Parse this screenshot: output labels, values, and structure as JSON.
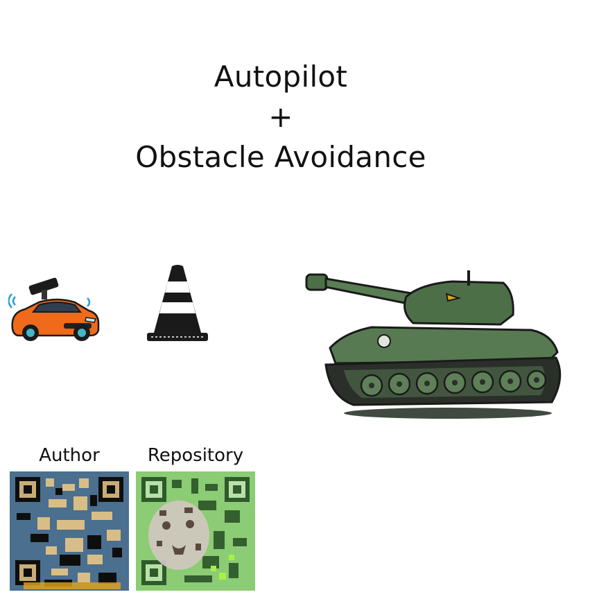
{
  "title": {
    "line1": "Autopilot",
    "line2": "+",
    "line3": "Obstacle Avoidance"
  },
  "illustrations": {
    "car_icon": "robot-car-with-lidar-icon",
    "cone_icon": "traffic-cone-icon",
    "tank_icon": "tank-icon"
  },
  "qr_codes": [
    {
      "label": "Author",
      "accent": "#4a6f8f"
    },
    {
      "label": "Repository",
      "accent": "#7fbf6a"
    }
  ],
  "colors": {
    "car_body": "#ef6a1a",
    "tank_body": "#4d6f48"
  }
}
